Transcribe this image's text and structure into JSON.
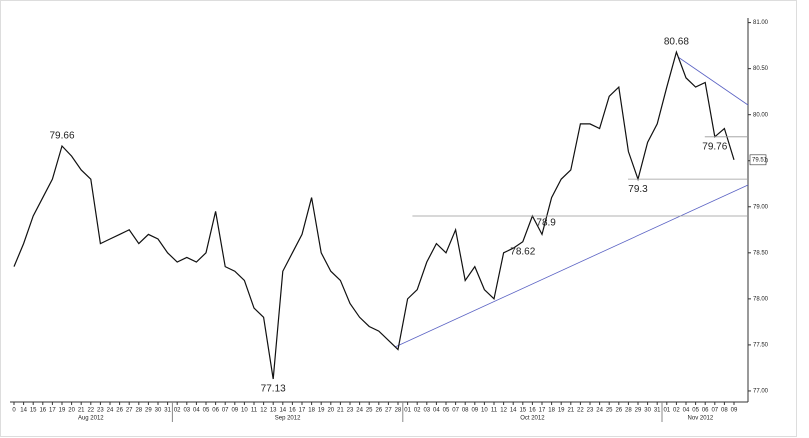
{
  "chart_data": {
    "type": "line",
    "color": "#111111",
    "categories": [
      "0",
      "14",
      "15",
      "16",
      "17",
      "19",
      "20",
      "21",
      "22",
      "23",
      "24",
      "26",
      "27",
      "28",
      "29",
      "30",
      "31",
      "02",
      "03",
      "04",
      "05",
      "06",
      "07",
      "09",
      "10",
      "11",
      "12",
      "13",
      "14",
      "16",
      "17",
      "18",
      "19",
      "20",
      "21",
      "23",
      "24",
      "25",
      "26",
      "27",
      "28",
      "01",
      "02",
      "03",
      "04",
      "05",
      "07",
      "08",
      "09",
      "10",
      "11",
      "12",
      "14",
      "15",
      "16",
      "17",
      "18",
      "19",
      "21",
      "22",
      "23",
      "24",
      "25",
      "26",
      "28",
      "29",
      "30",
      "31",
      "01",
      "02",
      "04",
      "05",
      "06",
      "07",
      "08",
      "09"
    ],
    "values": [
      78.35,
      78.6,
      78.9,
      79.1,
      79.3,
      79.66,
      79.55,
      79.4,
      79.3,
      78.6,
      78.65,
      78.7,
      78.75,
      78.6,
      78.7,
      78.65,
      78.5,
      78.4,
      78.45,
      78.4,
      78.5,
      78.95,
      78.35,
      78.3,
      78.2,
      77.9,
      77.8,
      77.13,
      78.3,
      78.5,
      78.7,
      79.1,
      78.5,
      78.3,
      78.2,
      77.95,
      77.8,
      77.7,
      77.65,
      77.55,
      77.45,
      78.0,
      78.1,
      78.4,
      78.6,
      78.5,
      78.75,
      78.2,
      78.35,
      78.1,
      78.0,
      78.5,
      78.55,
      78.62,
      78.9,
      78.7,
      79.1,
      79.3,
      79.4,
      79.9,
      79.9,
      79.85,
      80.2,
      80.3,
      79.6,
      79.3,
      79.7,
      79.9,
      80.3,
      80.68,
      80.4,
      80.3,
      80.35,
      79.76,
      79.85,
      79.51
    ],
    "periods": [
      {
        "label": "Aug 2012",
        "from": 0,
        "to": 16
      },
      {
        "label": "Sep 2012",
        "from": 17,
        "to": 40
      },
      {
        "label": "Oct 2012",
        "from": 41,
        "to": 67
      },
      {
        "label": "Nov 2012",
        "from": 68,
        "to": 75
      }
    ],
    "annotations": [
      {
        "value": 79.66,
        "index": 5,
        "side": "above"
      },
      {
        "value": 77.13,
        "index": 27,
        "side": "below"
      },
      {
        "value": 78.62,
        "index": 53,
        "side": "below"
      },
      {
        "value": 78.9,
        "index": 54,
        "side": "right",
        "level": true
      },
      {
        "value": 79.3,
        "index": 65,
        "side": "below",
        "level": true
      },
      {
        "value": 80.68,
        "index": 69,
        "side": "above"
      },
      {
        "value": 79.76,
        "index": 73,
        "side": "below",
        "level": true
      }
    ],
    "last_price": {
      "value": 79.51,
      "label": "79.51"
    },
    "ylim": [
      76.88,
      81.05
    ],
    "yticks": [
      {
        "value": 77,
        "label": "77.00"
      },
      {
        "value": 77.5,
        "label": "77.50"
      },
      {
        "value": 78,
        "label": "78.00"
      },
      {
        "value": 78.5,
        "label": "78.50"
      },
      {
        "value": 79,
        "label": "79.00"
      },
      {
        "value": 79.5,
        "label": "79.50"
      },
      {
        "value": 80,
        "label": "80.00"
      },
      {
        "value": 80.5,
        "label": "80.50"
      },
      {
        "value": 81,
        "label": "81.00"
      }
    ]
  }
}
